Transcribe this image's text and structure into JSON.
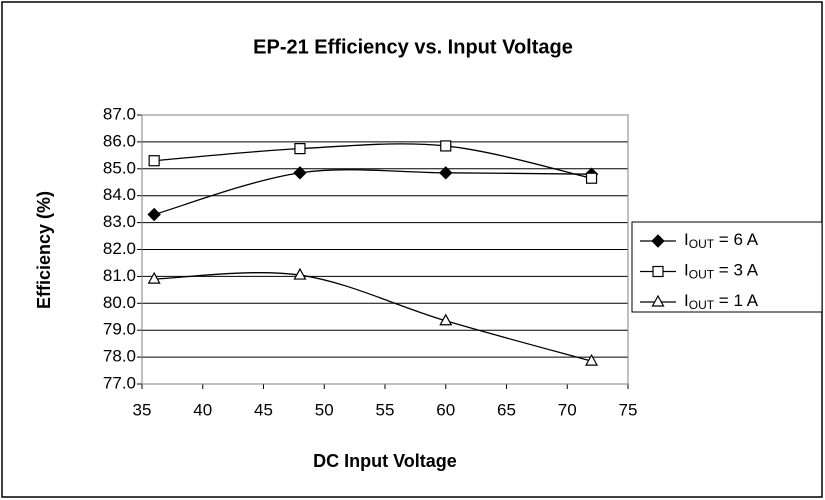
{
  "chart_data": {
    "type": "line",
    "title": "EP-21 Efficiency vs. Input Voltage",
    "xlabel": "DC Input Voltage",
    "ylabel": "Efficiency (%)",
    "x": [
      36,
      48,
      60,
      72
    ],
    "series": [
      {
        "name": "IOUT = 6 A",
        "color": "#000000",
        "marker": "diamond",
        "values": [
          83.3,
          84.85,
          84.85,
          84.8
        ]
      },
      {
        "name": "IOUT = 3 A",
        "color": "#000000",
        "marker": "square",
        "values": [
          85.3,
          85.75,
          85.85,
          84.65
        ]
      },
      {
        "name": "IOUT = 1 A",
        "color": "#000000",
        "marker": "triangle",
        "values": [
          80.9,
          81.05,
          79.35,
          77.85
        ]
      }
    ],
    "xlim": [
      35,
      75
    ],
    "xticks": [
      35,
      40,
      45,
      50,
      55,
      60,
      65,
      70,
      75
    ],
    "ylim": [
      77,
      87
    ],
    "yticks": [
      {
        "value": 77,
        "label": "77.0"
      },
      {
        "value": 78,
        "label": "78.0"
      },
      {
        "value": 79,
        "label": "79.0"
      },
      {
        "value": 80,
        "label": "80.0"
      },
      {
        "value": 81,
        "label": "81.0"
      },
      {
        "value": 82,
        "label": "82.0"
      },
      {
        "value": 83,
        "label": "83.0"
      },
      {
        "value": 84,
        "label": "84.0"
      },
      {
        "value": 85,
        "label": "85.0"
      },
      {
        "value": 86,
        "label": "86.0"
      },
      {
        "value": 87,
        "label": "87.0"
      }
    ],
    "grid": true,
    "smooth": true,
    "legend": "right"
  }
}
